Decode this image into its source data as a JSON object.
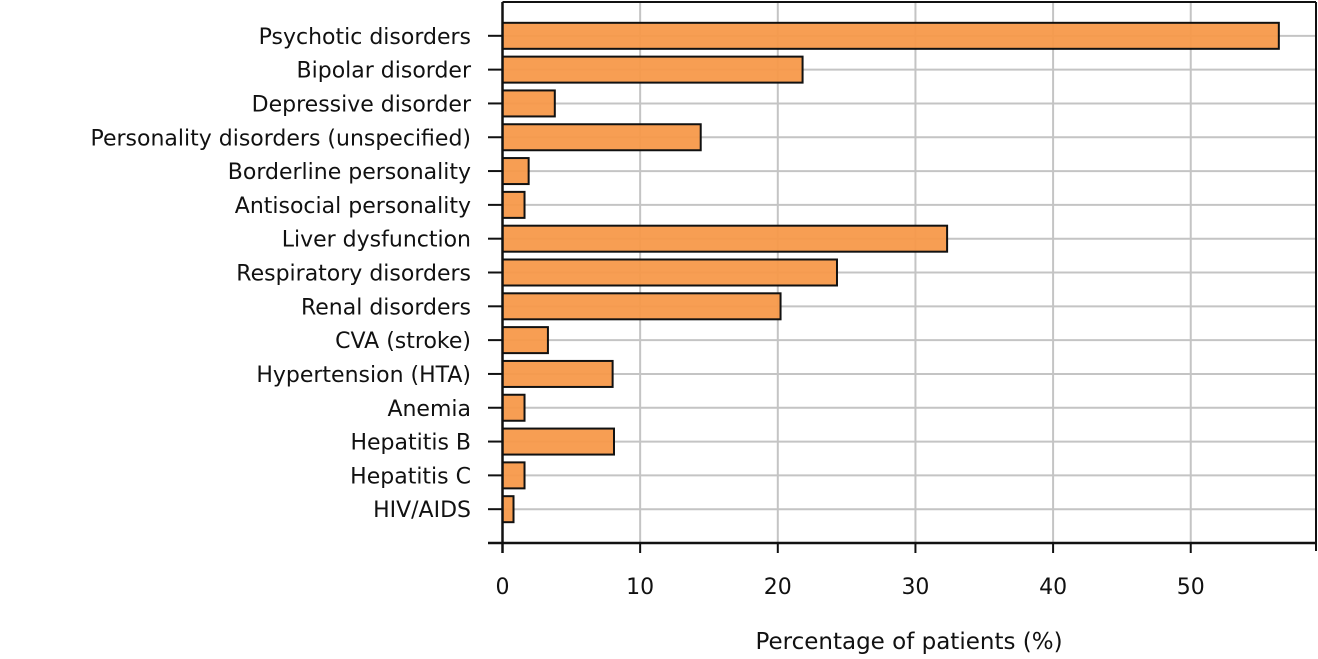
{
  "chart_data": {
    "type": "bar",
    "orientation": "horizontal",
    "title": "",
    "xlabel": "Percentage of patients (%)",
    "ylabel": "",
    "xlim": [
      0,
      59.1
    ],
    "xticks": [
      0,
      10,
      20,
      30,
      40,
      50
    ],
    "grid": true,
    "bar_color": "#F7994A",
    "bar_edge_color": "#111111",
    "grid_color": "#C4C4C4",
    "categories": [
      "Psychotic disorders",
      "Bipolar disorder",
      "Depressive disorder",
      "Personality disorders (unspecified)",
      "Borderline personality",
      "Antisocial personality",
      "Liver dysfunction",
      "Respiratory disorders",
      "Renal disorders",
      "CVA (stroke)",
      "Hypertension (HTA)",
      "Anemia",
      "Hepatitis B",
      "Hepatitis C",
      "HIV/AIDS"
    ],
    "values": [
      56.4,
      21.8,
      3.8,
      14.4,
      1.9,
      1.6,
      32.3,
      24.3,
      20.2,
      3.3,
      8.0,
      1.6,
      8.1,
      1.6,
      0.8
    ]
  }
}
